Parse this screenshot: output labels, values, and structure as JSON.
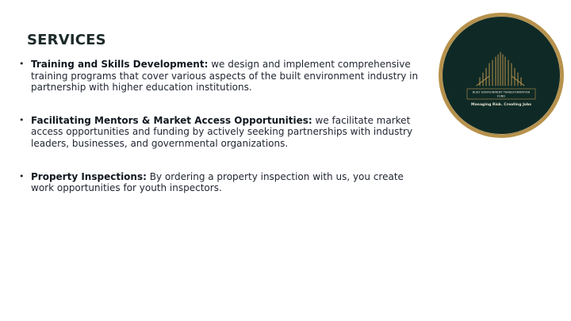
{
  "slide": {
    "title": "SERVICES"
  },
  "services": [
    {
      "bullet": "•",
      "lead": "Training and Skills Development:",
      "text": " we design and implement comprehensive training programs that cover various aspects of the built environment industry in partnership with higher education institutions."
    },
    {
      "bullet": "•",
      "lead": "Facilitating Mentors & Market Access Opportunities:",
      "text": " we facilitate market access opportunities and funding by actively seeking partnerships with industry leaders, businesses, and governmental organizations."
    },
    {
      "bullet": "•",
      "lead": "Property Inspections:",
      "text": "  By ordering a property inspection with us, you create work opportunities for youth inspectors."
    }
  ],
  "logo": {
    "name_line1": "BUILT ENVIRONMENT TRANSFORMATION",
    "name_line2": "FUND",
    "tagline": "Managing Risk. Creating Jobs",
    "colors": {
      "background": "#0f2a26",
      "gold": "#b8924c",
      "text": "#e8e2d0"
    }
  }
}
